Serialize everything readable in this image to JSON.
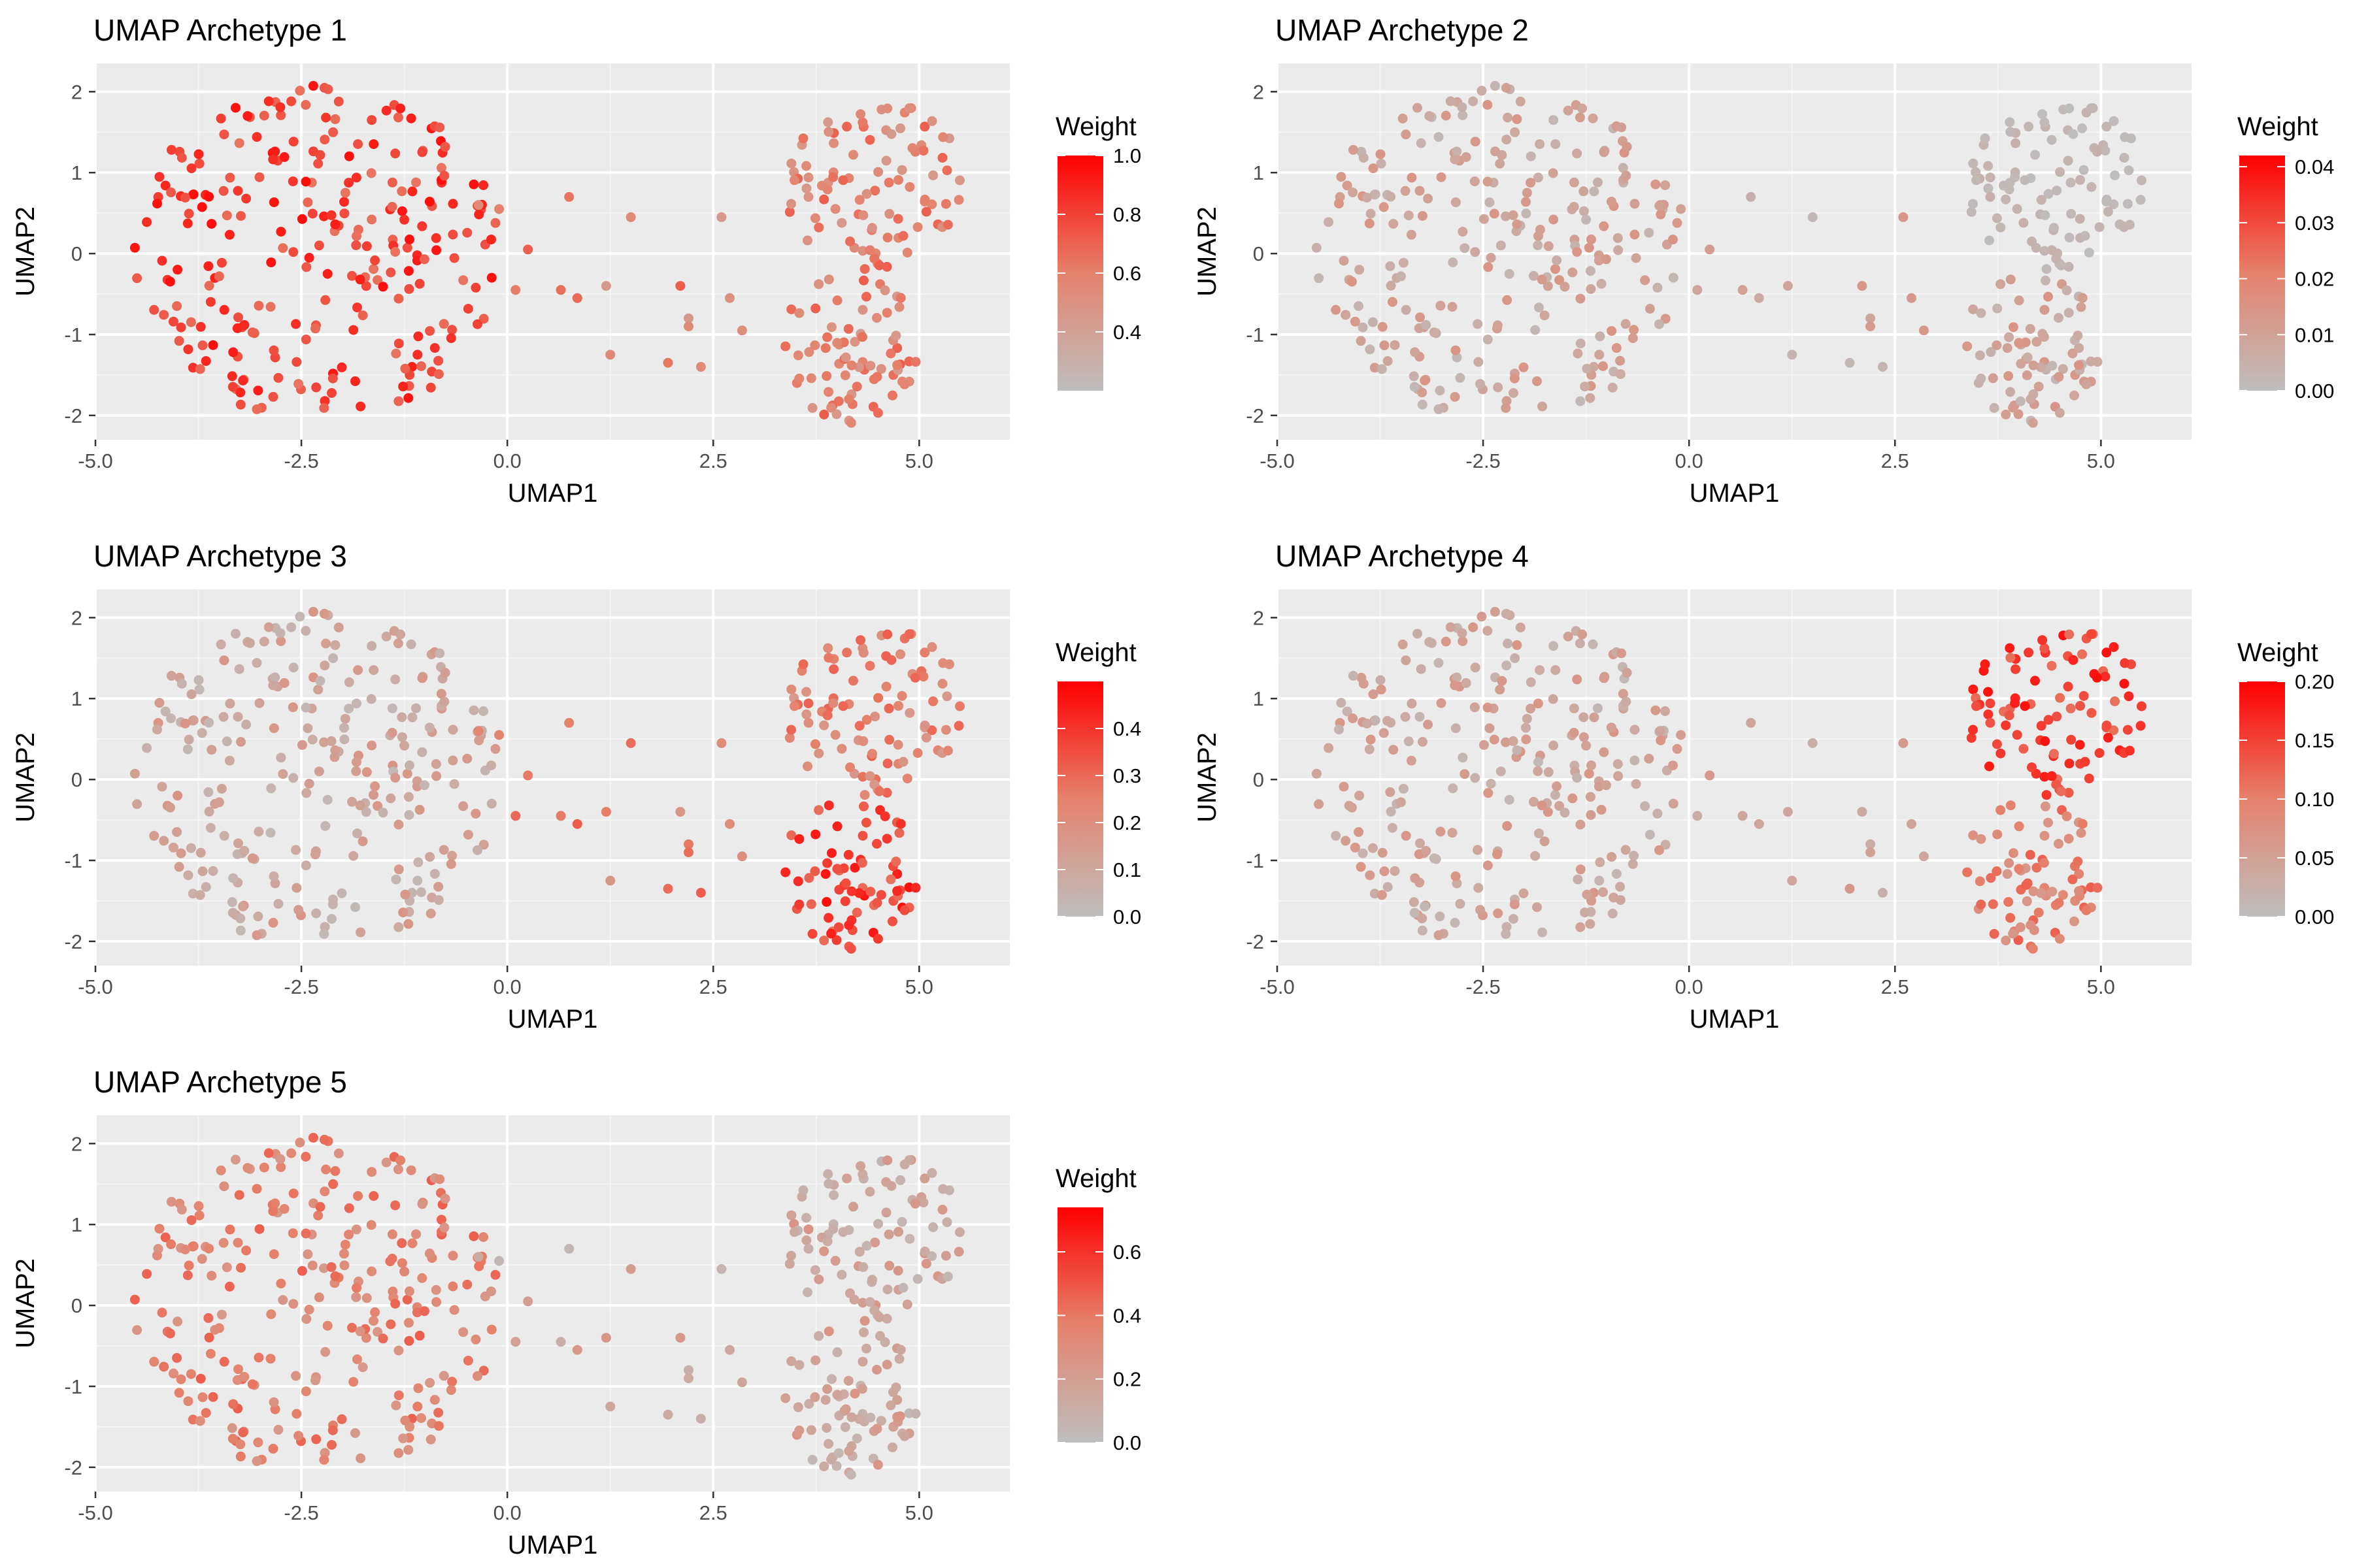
{
  "chart_data": [
    {
      "type": "scatter",
      "title": "UMAP Archetype 1",
      "xlabel": "UMAP1",
      "ylabel": "UMAP2",
      "xlim": [
        -5.0,
        6.1
      ],
      "ylim": [
        -2.3,
        2.35
      ],
      "x_ticks": [
        "-5.0",
        "-2.5",
        "0.0",
        "2.5",
        "5.0"
      ],
      "y_ticks": [
        "-2",
        "-1",
        "0",
        "1",
        "2"
      ],
      "grid": true,
      "legend": {
        "title": "Weight",
        "placement": "right",
        "min": 0.2,
        "max": 1.0,
        "ticks": [
          "0.4",
          "0.6",
          "0.8",
          "1.0"
        ]
      },
      "colors": {
        "low": "#BEBEBE",
        "high": "#FF0000",
        "panel": "#EBEBEB"
      },
      "weights": {
        "left_cluster": "high",
        "right_upper": "medium",
        "right_lower": "medium",
        "bridge": "medium"
      }
    },
    {
      "type": "scatter",
      "title": "UMAP Archetype 2",
      "xlabel": "UMAP1",
      "ylabel": "UMAP2",
      "xlim": [
        -5.0,
        6.1
      ],
      "ylim": [
        -2.3,
        2.35
      ],
      "x_ticks": [
        "-5.0",
        "-2.5",
        "0.0",
        "2.5",
        "5.0"
      ],
      "y_ticks": [
        "-2",
        "-1",
        "0",
        "1",
        "2"
      ],
      "grid": true,
      "legend": {
        "title": "Weight",
        "placement": "right",
        "min": 0.0,
        "max": 0.042,
        "ticks": [
          "0.00",
          "0.01",
          "0.02",
          "0.03",
          "0.04"
        ]
      },
      "colors": {
        "low": "#BEBEBE",
        "high": "#FF0000",
        "panel": "#EBEBEB"
      },
      "weights": {
        "left_cluster": "low",
        "right_upper": "very low",
        "right_lower": "low",
        "bridge": "low"
      }
    },
    {
      "type": "scatter",
      "title": "UMAP Archetype 3",
      "xlabel": "UMAP1",
      "ylabel": "UMAP2",
      "xlim": [
        -5.0,
        6.1
      ],
      "ylim": [
        -2.3,
        2.35
      ],
      "x_ticks": [
        "-5.0",
        "-2.5",
        "0.0",
        "2.5",
        "5.0"
      ],
      "y_ticks": [
        "-2",
        "-1",
        "0",
        "1",
        "2"
      ],
      "grid": true,
      "legend": {
        "title": "Weight",
        "placement": "right",
        "min": 0.0,
        "max": 0.5,
        "ticks": [
          "0.0",
          "0.1",
          "0.2",
          "0.3",
          "0.4"
        ]
      },
      "colors": {
        "low": "#BEBEBE",
        "high": "#FF0000",
        "panel": "#EBEBEB"
      },
      "weights": {
        "left_cluster": "low",
        "right_upper": "medium",
        "right_lower": "high",
        "bridge": "medium"
      }
    },
    {
      "type": "scatter",
      "title": "UMAP Archetype 4",
      "xlabel": "UMAP1",
      "ylabel": "UMAP2",
      "xlim": [
        -5.0,
        6.1
      ],
      "ylim": [
        -2.3,
        2.35
      ],
      "x_ticks": [
        "-5.0",
        "-2.5",
        "0.0",
        "2.5",
        "5.0"
      ],
      "y_ticks": [
        "-2",
        "-1",
        "0",
        "1",
        "2"
      ],
      "grid": true,
      "legend": {
        "title": "Weight",
        "placement": "right",
        "min": 0.0,
        "max": 0.2,
        "ticks": [
          "0.00",
          "0.05",
          "0.10",
          "0.15",
          "0.20"
        ]
      },
      "colors": {
        "low": "#BEBEBE",
        "high": "#FF0000",
        "panel": "#EBEBEB"
      },
      "weights": {
        "left_cluster": "low",
        "right_upper": "high",
        "right_lower": "medium",
        "bridge": "low"
      }
    },
    {
      "type": "scatter",
      "title": "UMAP Archetype 5",
      "xlabel": "UMAP1",
      "ylabel": "UMAP2",
      "xlim": [
        -5.0,
        6.1
      ],
      "ylim": [
        -2.3,
        2.35
      ],
      "x_ticks": [
        "-5.0",
        "-2.5",
        "0.0",
        "2.5",
        "5.0"
      ],
      "y_ticks": [
        "-2",
        "-1",
        "0",
        "1",
        "2"
      ],
      "grid": true,
      "legend": {
        "title": "Weight",
        "placement": "right",
        "min": 0.0,
        "max": 0.74,
        "ticks": [
          "0.0",
          "0.2",
          "0.4",
          "0.6"
        ]
      },
      "colors": {
        "low": "#BEBEBE",
        "high": "#FF0000",
        "panel": "#EBEBEB"
      },
      "weights": {
        "left_cluster": "medium",
        "right_upper": "low",
        "right_lower": "low",
        "bridge": "low"
      }
    }
  ],
  "points": {
    "clusters": [
      {
        "id": "left_cluster",
        "center": [
          -2.3,
          0.0
        ],
        "radius_x": 2.25,
        "radius_y": 2.1,
        "count": 260
      },
      {
        "id": "right_upper",
        "center": [
          4.45,
          0.85
        ],
        "radius_x": 1.1,
        "radius_y": 1.05,
        "count": 95
      },
      {
        "id": "right_lower",
        "center": [
          4.1,
          -1.15
        ],
        "radius_x": 0.9,
        "radius_y": 0.95,
        "count": 75
      }
    ],
    "bridge": [
      [
        -0.35,
        0.6
      ],
      [
        -0.1,
        0.55
      ],
      [
        0.25,
        0.05
      ],
      [
        0.1,
        -0.45
      ],
      [
        0.65,
        -0.45
      ],
      [
        0.85,
        -0.55
      ],
      [
        1.2,
        -0.4
      ],
      [
        1.25,
        -1.25
      ],
      [
        2.1,
        -0.4
      ],
      [
        2.2,
        -0.8
      ],
      [
        2.2,
        -0.9
      ],
      [
        1.95,
        -1.35
      ],
      [
        2.35,
        -1.4
      ],
      [
        2.7,
        -0.55
      ],
      [
        2.85,
        -0.95
      ],
      [
        2.6,
        0.45
      ],
      [
        1.5,
        0.45
      ],
      [
        0.75,
        0.7
      ]
    ]
  }
}
